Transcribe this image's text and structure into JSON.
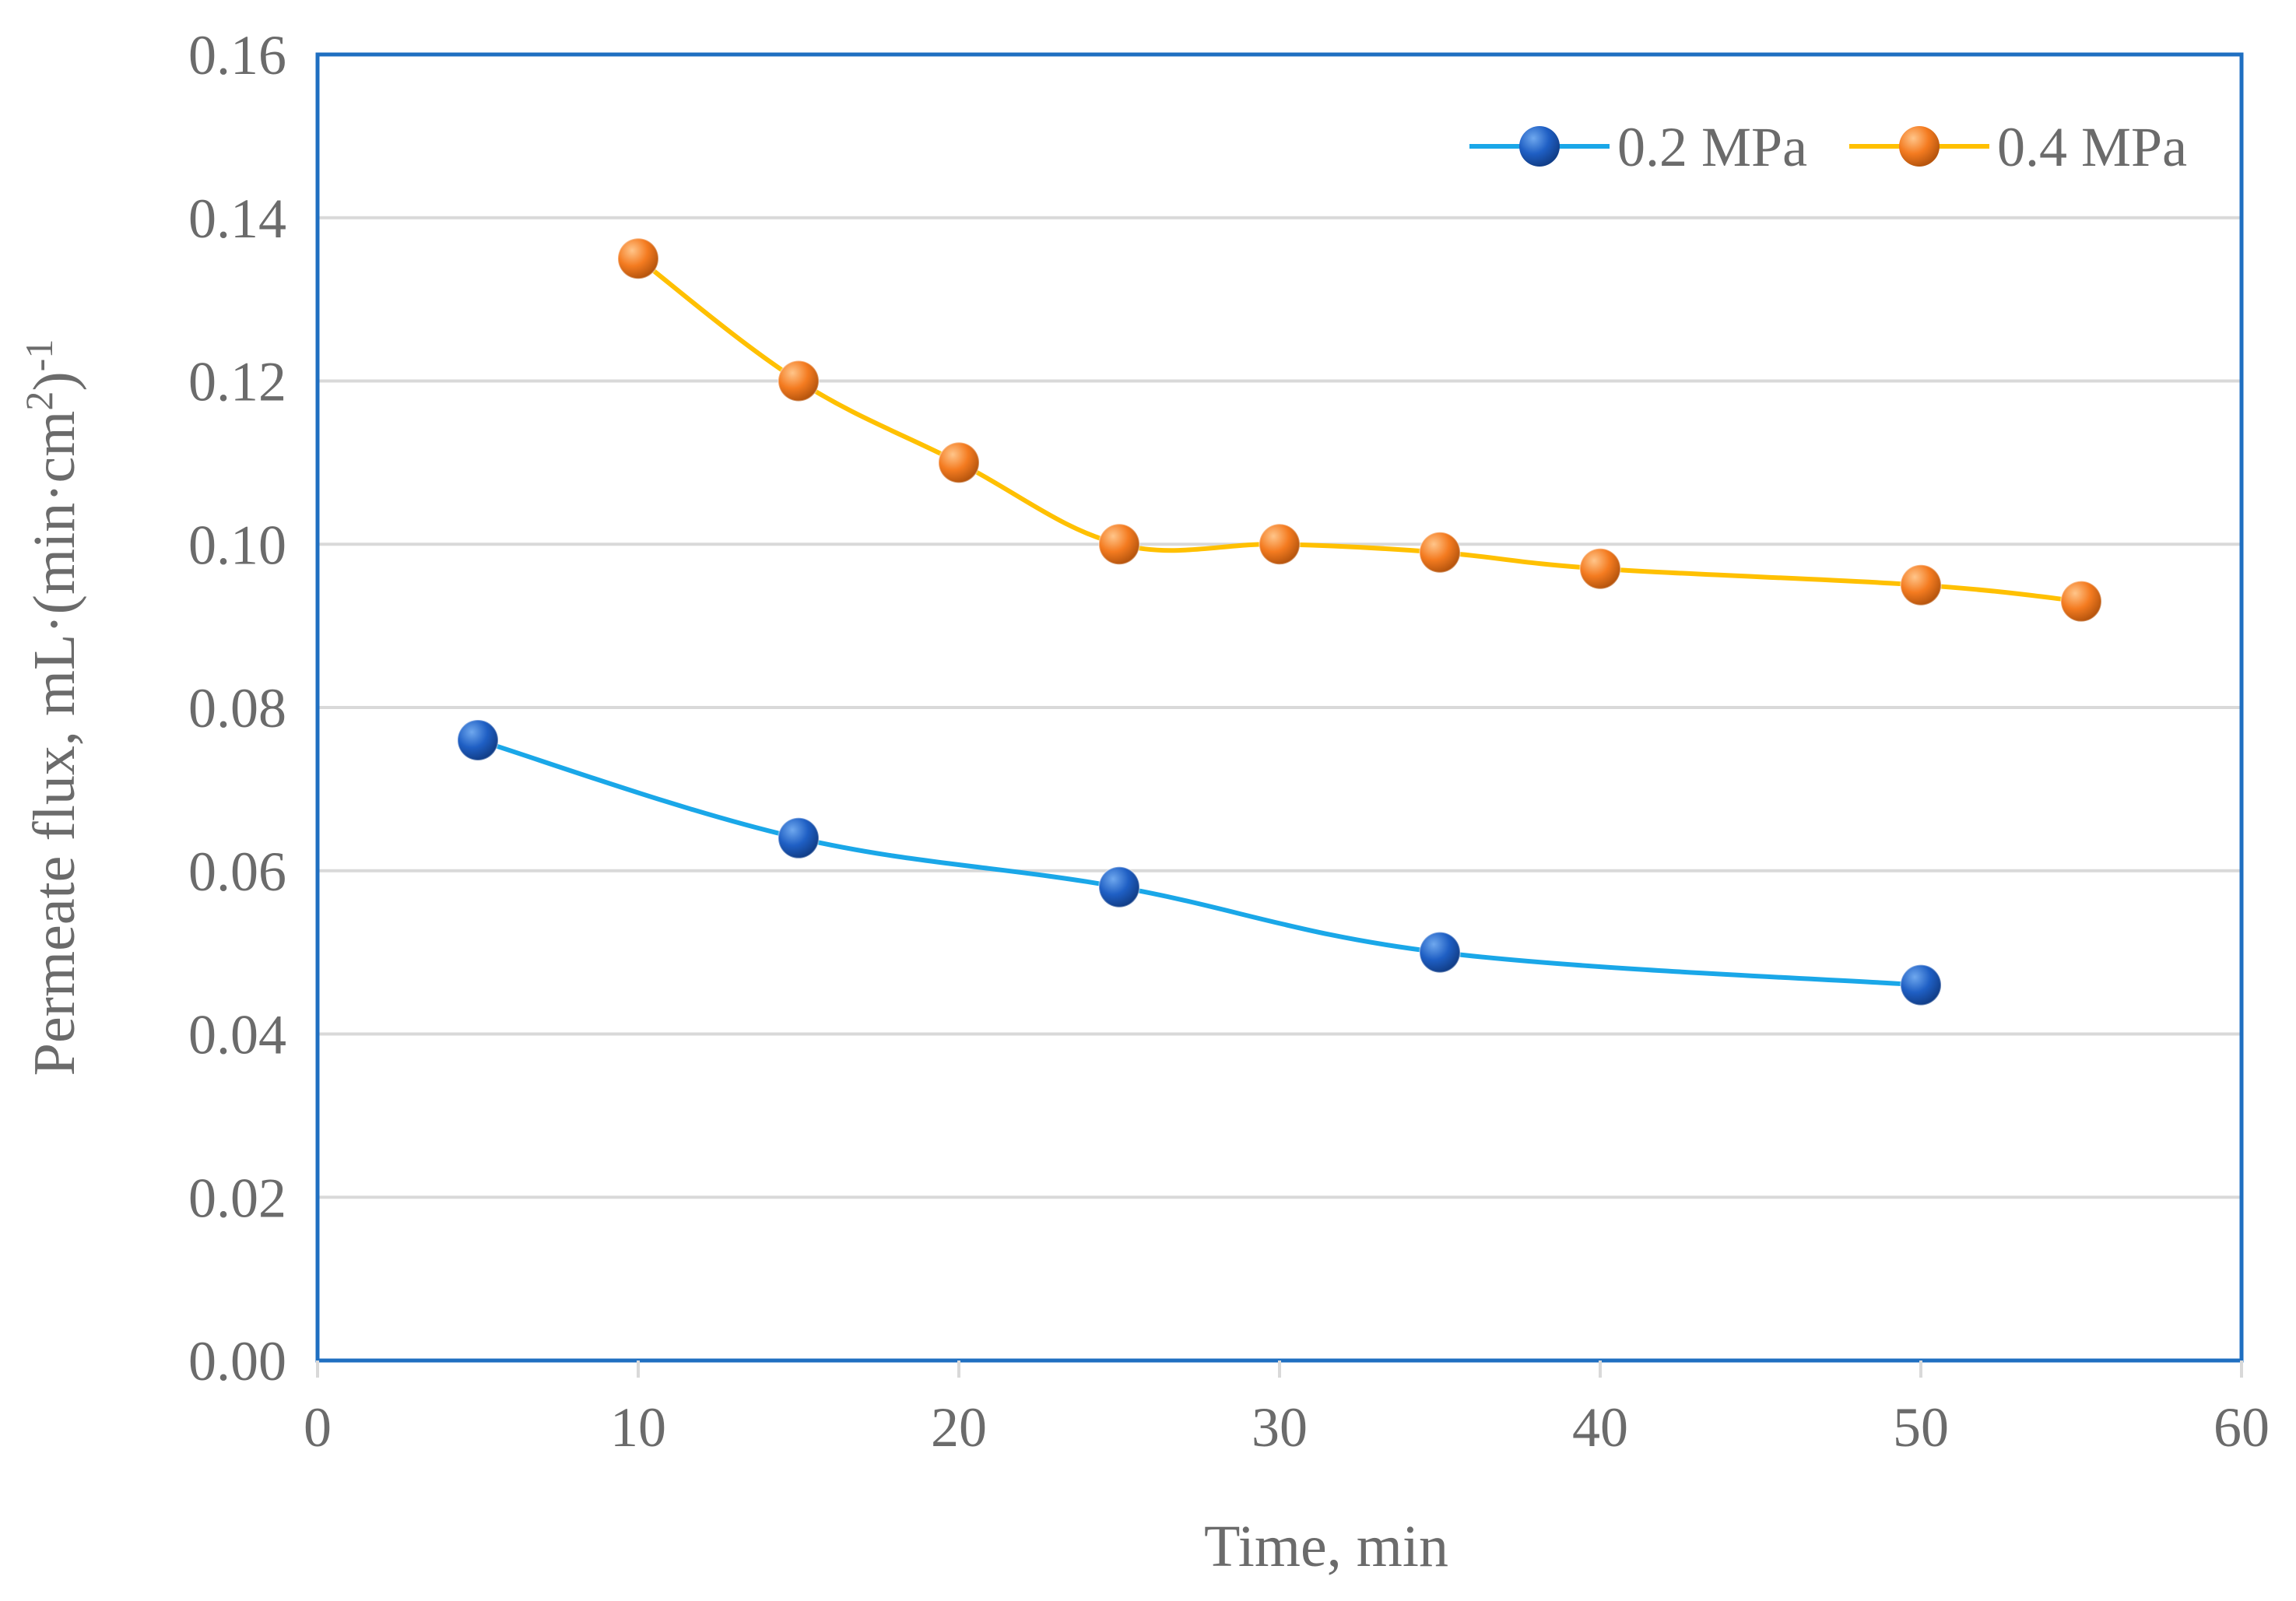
{
  "chart_data": {
    "type": "line",
    "title": "",
    "xlabel": "Time, min",
    "ylabel_main": "Permeate flux, mL·(min·cm",
    "ylabel_sup1": "2",
    "ylabel_mid": ")",
    "ylabel_sup2": "-1",
    "xlim": [
      0,
      60
    ],
    "ylim": [
      0,
      0.16
    ],
    "xticks": [
      0,
      10,
      20,
      30,
      40,
      50,
      60
    ],
    "xtick_labels": [
      "0",
      "10",
      "20",
      "30",
      "40",
      "50",
      "60"
    ],
    "yticks": [
      0,
      0.02,
      0.04,
      0.06,
      0.08,
      0.1,
      0.12,
      0.14,
      0.16
    ],
    "ytick_labels": [
      "0.00",
      "0.02",
      "0.04",
      "0.06",
      "0.08",
      "0.10",
      "0.12",
      "0.14",
      "0.16"
    ],
    "grid": true,
    "legend_position": "top-right",
    "series": [
      {
        "name": "0.2 MPa",
        "line_color": "#1AA7E8",
        "marker_color": "#1F5FC4",
        "x": [
          5,
          15,
          25,
          35,
          50
        ],
        "y": [
          0.076,
          0.064,
          0.058,
          0.05,
          0.046
        ]
      },
      {
        "name": "0.4 MPa",
        "line_color": "#FFC000",
        "marker_color": "#F47B20",
        "x": [
          10,
          15,
          20,
          25,
          30,
          35,
          40,
          50,
          55
        ],
        "y": [
          0.135,
          0.12,
          0.11,
          0.1,
          0.1,
          0.099,
          0.097,
          0.095,
          0.093
        ]
      }
    ],
    "frame_color": "#1F6FC1",
    "grid_color": "#D9D9D9"
  }
}
